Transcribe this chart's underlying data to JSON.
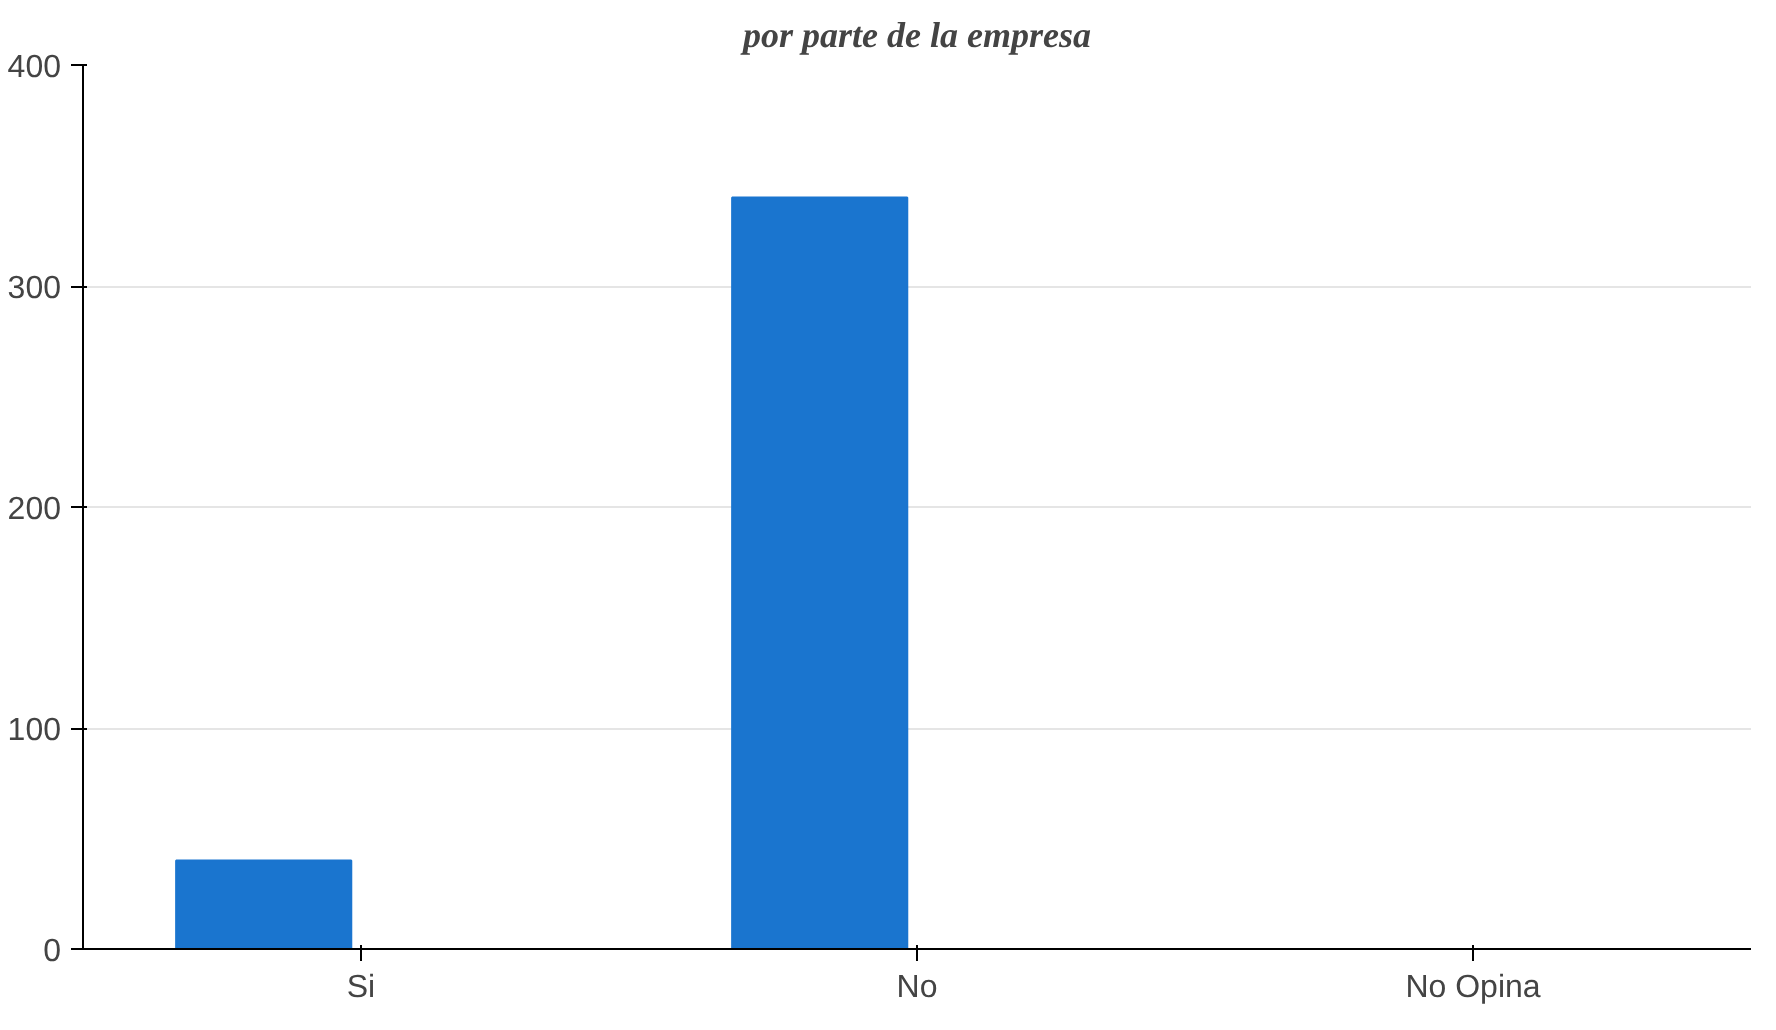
{
  "chart_data": {
    "type": "bar",
    "title": "por parte de la empresa",
    "categories": [
      "Si",
      "No",
      "No Opina"
    ],
    "series": [
      {
        "color": "#1a75cf",
        "values": [
          40,
          340,
          0
        ]
      },
      {
        "color": "#e00000",
        "values": [
          0,
          0,
          0
        ]
      }
    ],
    "ylim": [
      0,
      400
    ],
    "yticks": [
      0,
      100,
      200,
      300,
      400
    ],
    "grid": "y"
  }
}
